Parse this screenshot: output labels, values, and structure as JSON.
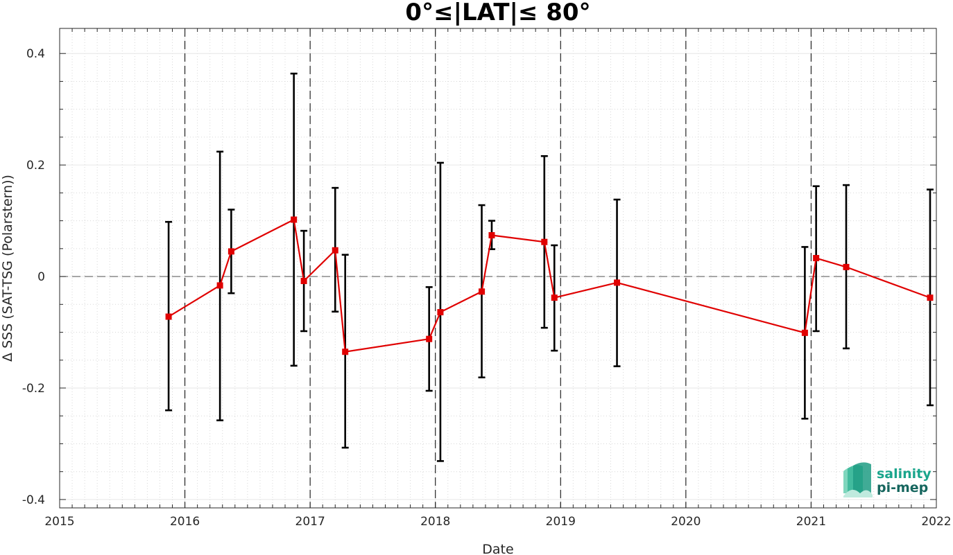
{
  "chart_data": {
    "type": "line",
    "title": "0°≤|LAT|≤ 80°",
    "xlabel": "Date",
    "ylabel": "Δ SSS (SAT-TSG (Polarstern))",
    "xlim": [
      2015,
      2022
    ],
    "ylim": [
      -0.415,
      0.445
    ],
    "x_ticks": [
      "2015",
      "2016",
      "2017",
      "2018",
      "2019",
      "2020",
      "2021",
      "2022"
    ],
    "y_ticks": [
      "-0.4",
      "-0.2",
      "0",
      "0.2",
      "0.4"
    ],
    "y_tick_values": [
      -0.4,
      -0.2,
      0,
      0.2,
      0.4
    ],
    "grid": true,
    "zero_line": true,
    "year_boundaries_dashed": [
      "2016",
      "2017",
      "2018",
      "2019",
      "2020",
      "2021"
    ],
    "series": [
      {
        "color": "#e00000",
        "marker": "square",
        "points": [
          {
            "x": 2015.87,
            "y": -0.072,
            "err_low": -0.24,
            "err_high": 0.098
          },
          {
            "x": 2016.28,
            "y": -0.016,
            "err_low": -0.258,
            "err_high": 0.224
          },
          {
            "x": 2016.37,
            "y": 0.045,
            "err_low": -0.03,
            "err_high": 0.12
          },
          {
            "x": 2016.87,
            "y": 0.102,
            "err_low": -0.16,
            "err_high": 0.364
          },
          {
            "x": 2016.95,
            "y": -0.008,
            "err_low": -0.098,
            "err_high": 0.082
          },
          {
            "x": 2017.2,
            "y": 0.047,
            "err_low": -0.063,
            "err_high": 0.159
          },
          {
            "x": 2017.28,
            "y": -0.135,
            "err_low": -0.307,
            "err_high": 0.039
          },
          {
            "x": 2017.95,
            "y": -0.112,
            "err_low": -0.205,
            "err_high": -0.019
          },
          {
            "x": 2018.04,
            "y": -0.064,
            "err_low": -0.331,
            "err_high": 0.204
          },
          {
            "x": 2018.37,
            "y": -0.027,
            "err_low": -0.181,
            "err_high": 0.128
          },
          {
            "x": 2018.45,
            "y": 0.074,
            "err_low": 0.049,
            "err_high": 0.1
          },
          {
            "x": 2018.87,
            "y": 0.062,
            "err_low": -0.092,
            "err_high": 0.216
          },
          {
            "x": 2018.95,
            "y": -0.038,
            "err_low": -0.133,
            "err_high": 0.056
          },
          {
            "x": 2019.45,
            "y": -0.011,
            "err_low": -0.161,
            "err_high": 0.138
          },
          {
            "x": 2020.95,
            "y": -0.101,
            "err_low": -0.255,
            "err_high": 0.053
          },
          {
            "x": 2021.04,
            "y": 0.033,
            "err_low": -0.098,
            "err_high": 0.162
          },
          {
            "x": 2021.28,
            "y": 0.017,
            "err_low": -0.129,
            "err_high": 0.164
          },
          {
            "x": 2021.95,
            "y": -0.038,
            "err_low": -0.231,
            "err_high": 0.156
          }
        ]
      }
    ]
  },
  "logo": {
    "line1": "salinity",
    "line2": "pi-mep",
    "color1": "#1aa58c",
    "color2": "#16665e"
  }
}
